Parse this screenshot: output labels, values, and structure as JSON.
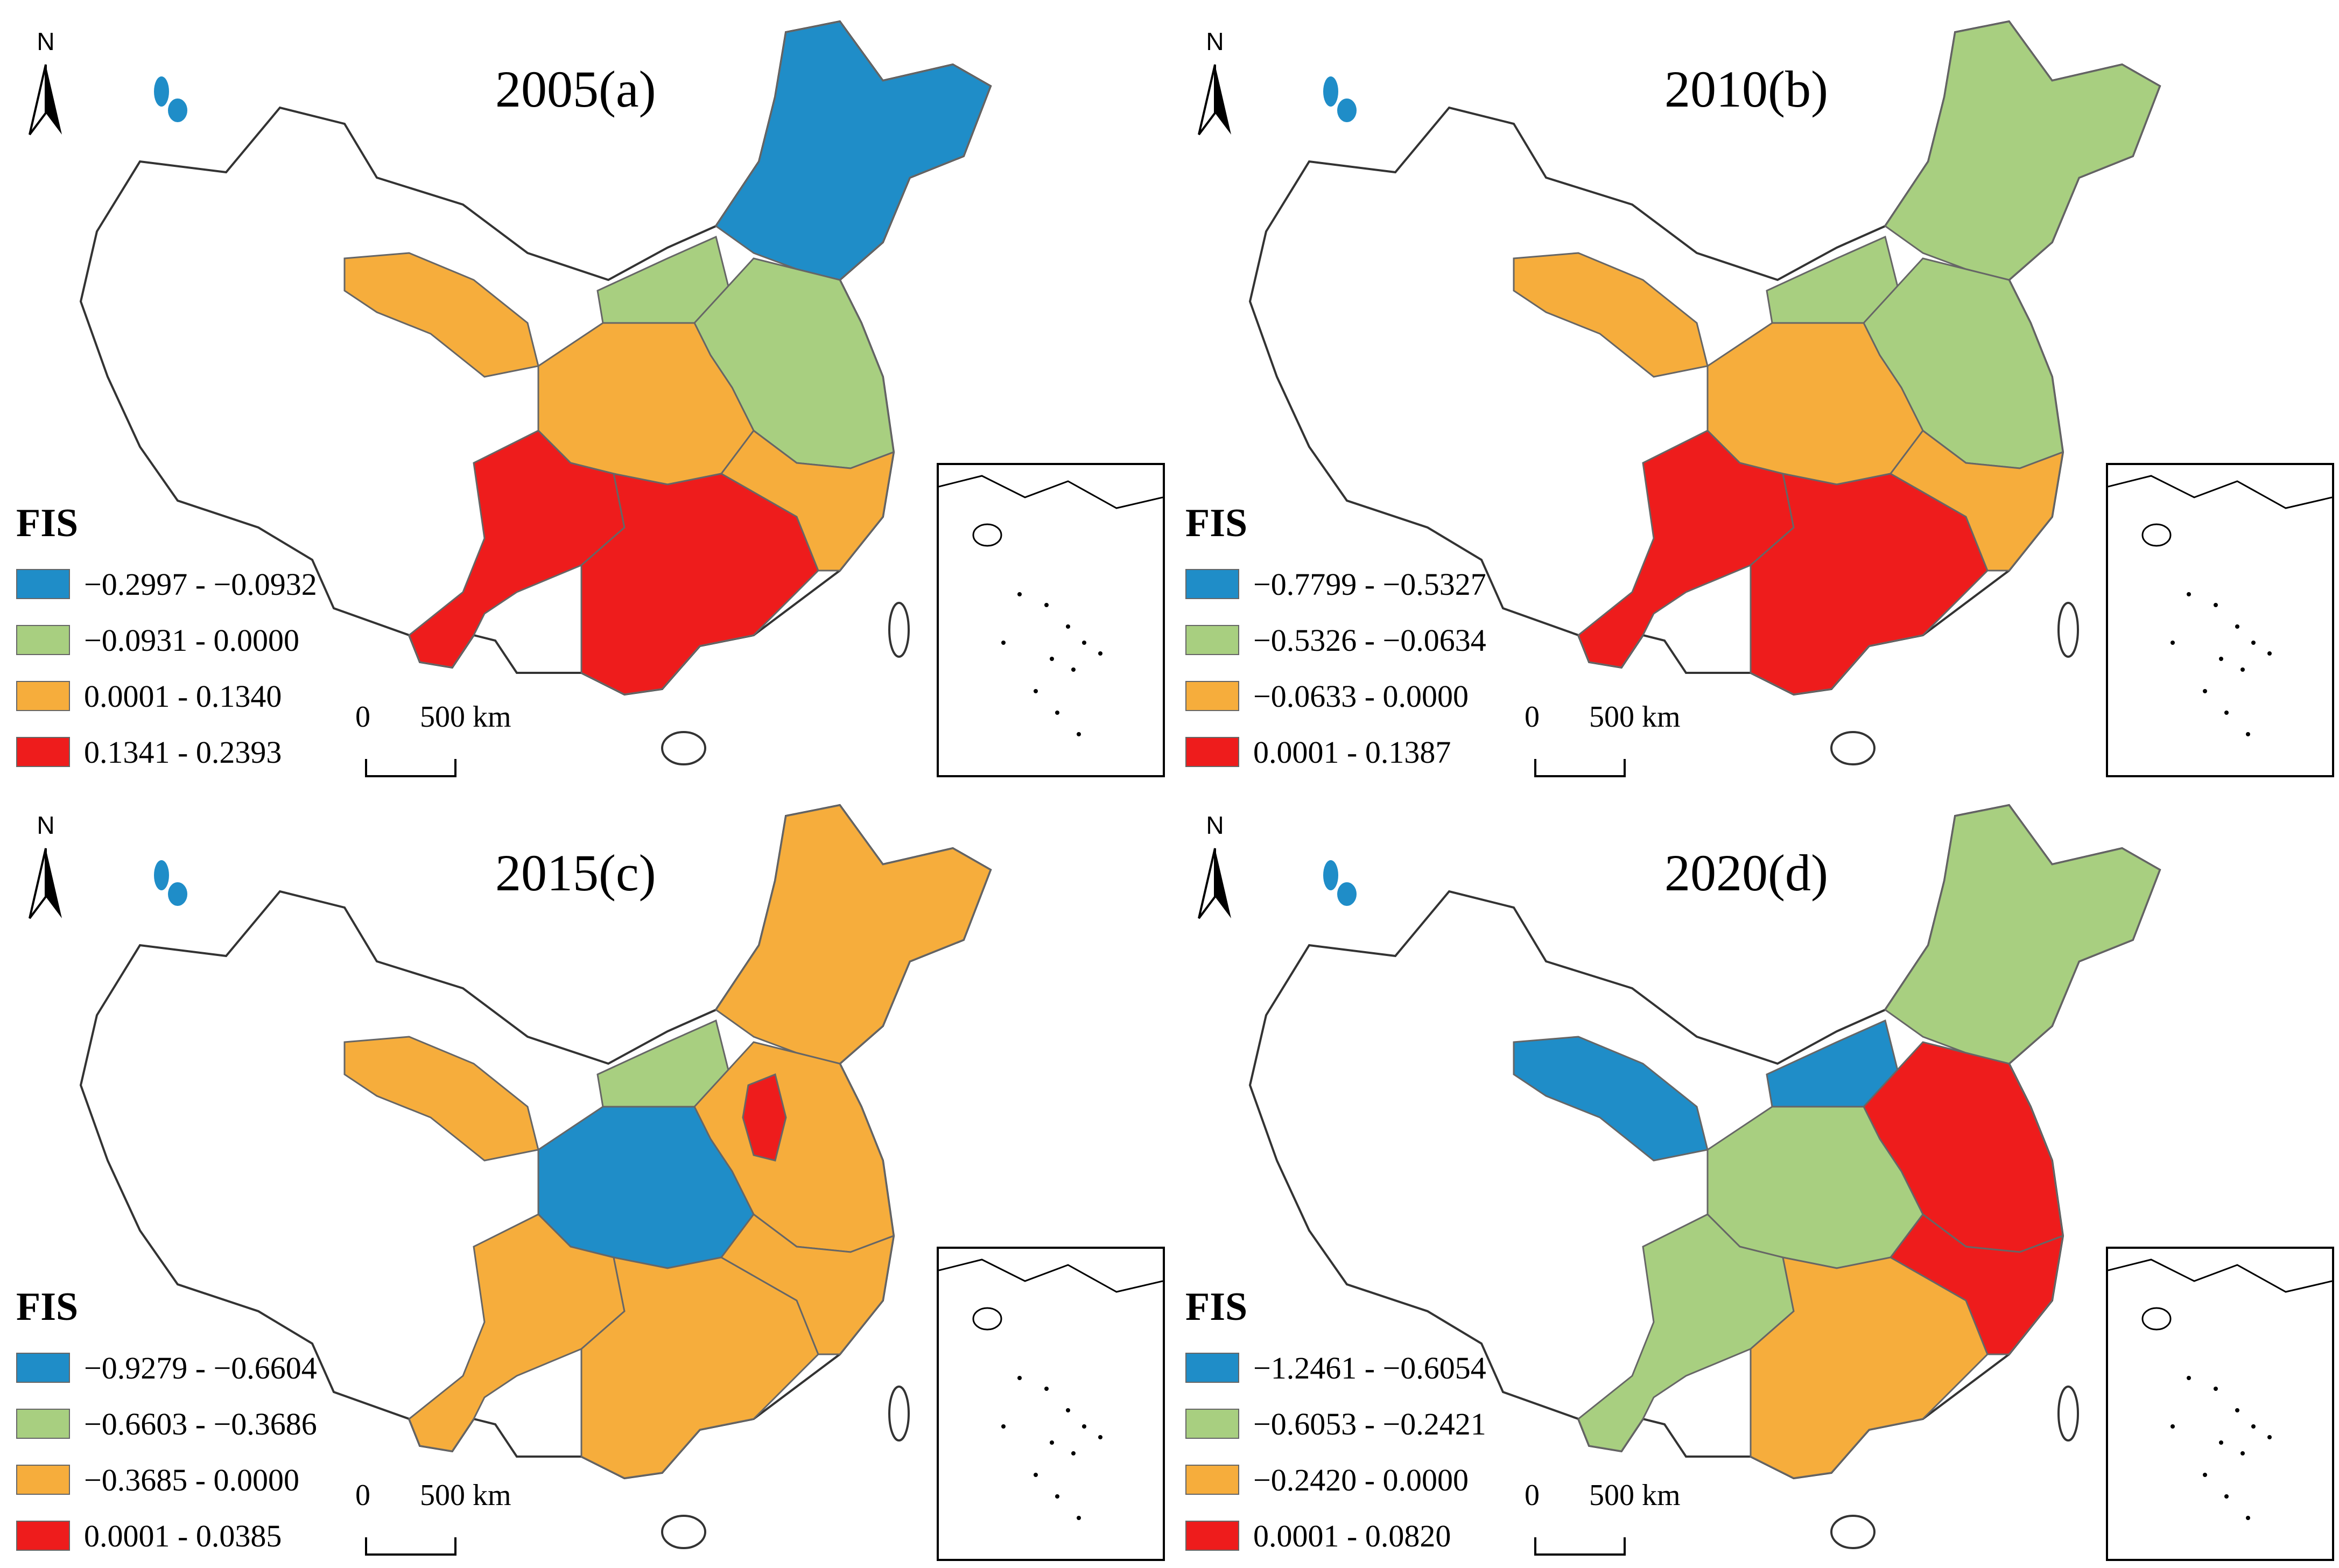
{
  "figure": {
    "panels": [
      {
        "title": "2005(a)",
        "north": "N",
        "legend_title": "FIS",
        "legend": [
          {
            "label": "−0.2997 - −0.0932",
            "color": "#1f8dc8"
          },
          {
            "label": "−0.0931 - 0.0000",
            "color": "#a8cf80"
          },
          {
            "label": "0.0001 - 0.1340",
            "color": "#f6ad3c"
          },
          {
            "label": "0.1341 - 0.2393",
            "color": "#ee1c1c"
          }
        ],
        "scale_zero": "0",
        "scale_km": "500 km"
      },
      {
        "title": "2010(b)",
        "north": "N",
        "legend_title": "FIS",
        "legend": [
          {
            "label": "−0.7799 - −0.5327",
            "color": "#1f8dc8"
          },
          {
            "label": "−0.5326 - −0.0634",
            "color": "#a8cf80"
          },
          {
            "label": "−0.0633 - 0.0000",
            "color": "#f6ad3c"
          },
          {
            "label": "0.0001 - 0.1387",
            "color": "#ee1c1c"
          }
        ],
        "scale_zero": "0",
        "scale_km": "500 km"
      },
      {
        "title": "2015(c)",
        "north": "N",
        "legend_title": "FIS",
        "legend": [
          {
            "label": "−0.9279 - −0.6604",
            "color": "#1f8dc8"
          },
          {
            "label": "−0.6603 - −0.3686",
            "color": "#a8cf80"
          },
          {
            "label": "−0.3685 - 0.0000",
            "color": "#f6ad3c"
          },
          {
            "label": "0.0001 - 0.0385",
            "color": "#ee1c1c"
          }
        ],
        "scale_zero": "0",
        "scale_km": "500 km"
      },
      {
        "title": "2020(d)",
        "north": "N",
        "legend_title": "FIS",
        "legend": [
          {
            "label": "−1.2461 - −0.6054",
            "color": "#1f8dc8"
          },
          {
            "label": "−0.6053 - −0.2421",
            "color": "#a8cf80"
          },
          {
            "label": "−0.2420 - 0.0000",
            "color": "#f6ad3c"
          },
          {
            "label": "0.0001 - 0.0820",
            "color": "#ee1c1c"
          }
        ],
        "scale_zero": "0",
        "scale_km": "500 km"
      }
    ],
    "region_classes": {
      "2005(a)": {
        "northeast": 0,
        "north_central": 1,
        "east": 1,
        "central": 2,
        "northwest": 2,
        "southwest": 3,
        "south": 3,
        "southeast": 2
      },
      "2010(b)": {
        "northeast": 1,
        "north_central": 1,
        "east": 1,
        "central": 2,
        "northwest": 2,
        "southwest": 3,
        "south": 3,
        "southeast": 2
      },
      "2015(c)": {
        "northeast": 2,
        "north_central": 1,
        "east": 2,
        "central": 0,
        "northwest": 2,
        "southwest": 2,
        "south": 2,
        "southeast": 2,
        "capital": 3
      },
      "2020(d)": {
        "northeast": 1,
        "north_central": 0,
        "east": 3,
        "central": 1,
        "northwest": 0,
        "southwest": 1,
        "south": 2,
        "southeast": 3
      }
    }
  }
}
